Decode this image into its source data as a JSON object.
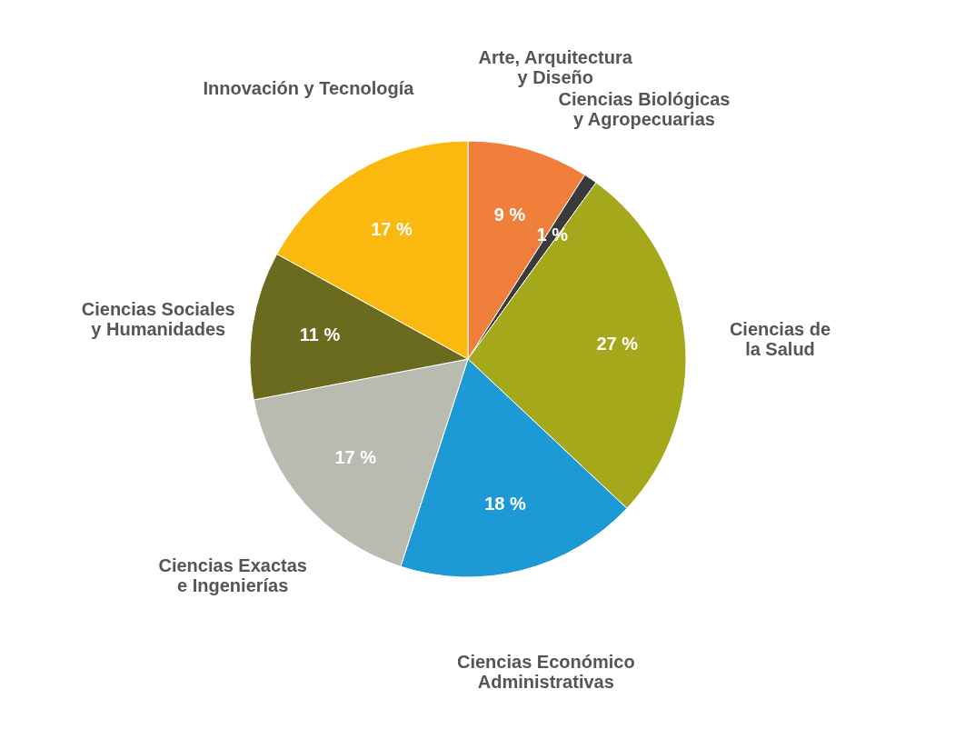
{
  "chart_data": {
    "type": "pie",
    "categories": [
      "Arte, Arquitectura\ny Diseño",
      "Ciencias Biológicas\ny Agropecuarias",
      "Ciencias de\nla Salud",
      "Ciencias Económico\nAdministrativas",
      "Ciencias Exactas\ne Ingenierías",
      "Ciencias Sociales\ny Humanidades",
      "Innovación y Tecnología"
    ],
    "values": [
      9,
      1,
      27,
      18,
      17,
      11,
      17
    ],
    "value_labels": [
      "9 %",
      "1 %",
      "27 %",
      "18 %",
      "17 %",
      "11 %",
      "17 %"
    ],
    "colors": [
      "#f07f3c",
      "#3a3a3a",
      "#a5a81a",
      "#1d9ad6",
      "#b9bab0",
      "#6b6b1f",
      "#fbb80f"
    ],
    "legend": false
  }
}
